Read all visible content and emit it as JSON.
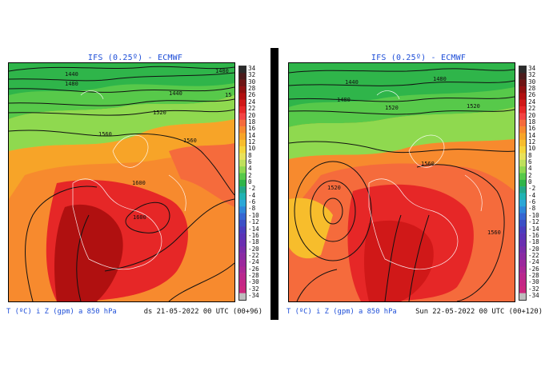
{
  "panels": [
    {
      "title": "IFS (0.25º) - ECMWF",
      "footer_left": "T (ºC) i Z (gpm) a 850 hPa",
      "footer_right": "ds 21-05-2022 00 UTC (00+96)",
      "contour_labels": [
        "1440",
        "1480",
        "1440",
        "1480",
        "15",
        "1520",
        "1560",
        "1560",
        "1600",
        "1600"
      ]
    },
    {
      "title": "IFS (0.25º) - ECMWF",
      "footer_left": "T (ºC) i Z (gpm) a 850 hPa",
      "footer_right": "Sun 22-05-2022 00 UTC (00+120)",
      "contour_labels": [
        "1440",
        "1480",
        "1480",
        "1520",
        "1520",
        "1520",
        "1560",
        "1560"
      ]
    }
  ],
  "colorbar": {
    "labels": [
      "34",
      "32",
      "30",
      "28",
      "26",
      "24",
      "22",
      "20",
      "18",
      "16",
      "14",
      "12",
      "10",
      "8",
      "6",
      "4",
      "2",
      "0",
      "-2",
      "-4",
      "-6",
      "-8",
      "-10",
      "-12",
      "-14",
      "-16",
      "-18",
      "-20",
      "-22",
      "-24",
      "-26",
      "-28",
      "-30",
      "-32",
      "-34"
    ],
    "colors": [
      "#2b2b2b",
      "#4a1b1b",
      "#6e1414",
      "#8f1010",
      "#b01010",
      "#d01818",
      "#e62727",
      "#f24444",
      "#f56b3c",
      "#f78a2e",
      "#f7a428",
      "#f7bd2c",
      "#f4d63a",
      "#e8e25a",
      "#bfe05c",
      "#8fd94f",
      "#57c94a",
      "#2fb54a",
      "#22a889",
      "#1fb3b3",
      "#2aa7d7",
      "#2d86d9",
      "#3566d1",
      "#3b4fc6",
      "#4a3dbd",
      "#5a34b6",
      "#6a2fb0",
      "#7a2ca8",
      "#8a2aa2",
      "#9b289c",
      "#aa2795",
      "#b9278d",
      "#c42785",
      "#cc287e",
      "#bdbdbd"
    ]
  }
}
